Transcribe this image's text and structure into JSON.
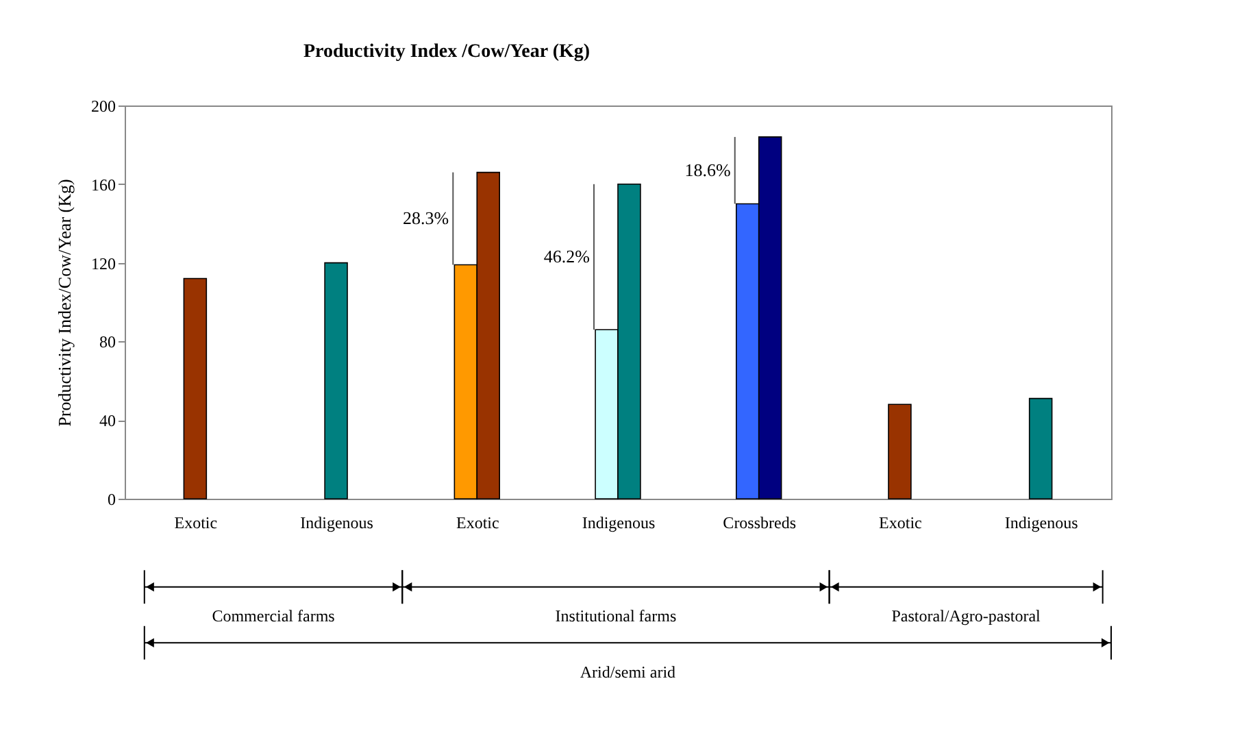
{
  "chart_data": {
    "type": "bar",
    "title": "Productivity Index /Cow/Year (Kg)",
    "ylabel": "Productivity Index/Cow/Year (Kg)",
    "categories": [
      "Exotic",
      "Indigenous",
      "Exotic",
      "Indigenous",
      "Crossbreds",
      "Exotic",
      "Indigenous"
    ],
    "series": [
      {
        "colors": [
          null,
          null,
          "#ff9900",
          null,
          "#3366ff",
          null,
          null
        ],
        "values": [
          null,
          null,
          119,
          86,
          150,
          null,
          null
        ]
      },
      {
        "colors": [
          "#993300",
          "#008080",
          "#993300",
          "#008080",
          "#000080",
          "#993300",
          "#008080"
        ],
        "values": [
          112,
          120,
          166,
          160,
          184,
          48,
          51
        ]
      }
    ],
    "ylim": [
      0,
      200
    ],
    "yticks": [
      0,
      40,
      80,
      120,
      160,
      200
    ],
    "grid": false,
    "annotations": [
      "28.3%",
      "46.2%",
      "18.6%",
      "Commercial farms",
      "Institutional farms",
      "Pastoral/Agro-pastoral",
      "Arid/semi arid"
    ]
  }
}
